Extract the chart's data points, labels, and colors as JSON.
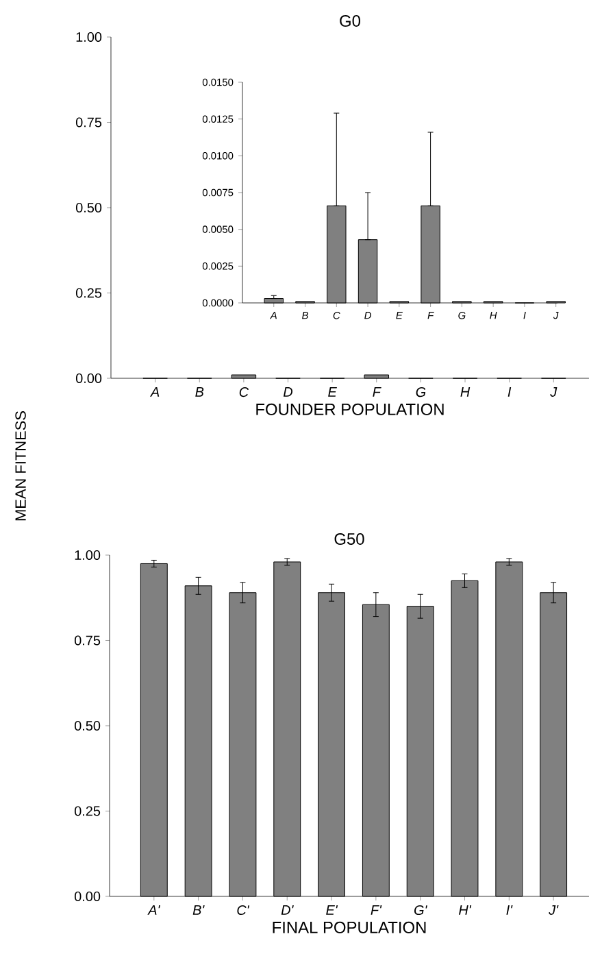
{
  "chart_data": [
    {
      "type": "bar",
      "title": "G0",
      "xlabel": "FOUNDER POPULATION",
      "ylabel": "MEAN FITNESS",
      "categories": [
        "A",
        "B",
        "C",
        "D",
        "E",
        "F",
        "G",
        "H",
        "I",
        "J"
      ],
      "values": [
        0,
        0,
        0.01,
        0,
        0,
        0.01,
        0,
        0,
        0,
        0
      ],
      "color": "#808080",
      "ylim": [
        0,
        1
      ],
      "yticks": [
        {
          "value": 0,
          "label": "0.00"
        },
        {
          "value": 0.25,
          "label": "0.25"
        },
        {
          "value": 0.5,
          "label": "0.50"
        },
        {
          "value": 0.75,
          "label": "0.75"
        },
        {
          "value": 1,
          "label": "1.00"
        }
      ]
    },
    {
      "type": "bar",
      "categories": [
        "A",
        "B",
        "C",
        "D",
        "E",
        "F",
        "G",
        "H",
        "I",
        "J"
      ],
      "values": [
        0.0003,
        0.0001,
        0.0066,
        0.0043,
        0.0001,
        0.0066,
        0.0001,
        0.0001,
        0,
        0.0001
      ],
      "errors": [
        [
          0.0003,
          0.0005
        ],
        null,
        [
          0.0066,
          0.0129
        ],
        [
          0.0043,
          0.0075
        ],
        null,
        [
          0.0066,
          0.0116
        ],
        null,
        null,
        null,
        null
      ],
      "color": "#808080",
      "ylim": [
        0,
        0.015
      ],
      "yticks": [
        {
          "value": 0,
          "label": "0.0000"
        },
        {
          "value": 0.0025,
          "label": "0.0025"
        },
        {
          "value": 0.005,
          "label": "0.0050"
        },
        {
          "value": 0.0075,
          "label": "0.0075"
        },
        {
          "value": 0.01,
          "label": "0.0100"
        },
        {
          "value": 0.0125,
          "label": "0.0125"
        },
        {
          "value": 0.015,
          "label": "0.0150"
        }
      ]
    },
    {
      "type": "bar",
      "title": "G50",
      "xlabel": "FINAL POPULATION",
      "categories": [
        "A'",
        "B'",
        "C'",
        "D'",
        "E'",
        "F'",
        "G'",
        "H'",
        "I'",
        "J'"
      ],
      "values": [
        0.975,
        0.91,
        0.89,
        0.98,
        0.89,
        0.855,
        0.85,
        0.925,
        0.98,
        0.89
      ],
      "errors": [
        0.01,
        0.025,
        0.03,
        0.01,
        0.025,
        0.035,
        0.035,
        0.02,
        0.01,
        0.03
      ],
      "color": "#808080",
      "ylim": [
        0,
        1
      ],
      "yticks": [
        {
          "value": 0,
          "label": "0.00"
        },
        {
          "value": 0.25,
          "label": "0.25"
        },
        {
          "value": 0.5,
          "label": "0.50"
        },
        {
          "value": 0.75,
          "label": "0.75"
        },
        {
          "value": 1,
          "label": "1.00"
        }
      ]
    }
  ]
}
